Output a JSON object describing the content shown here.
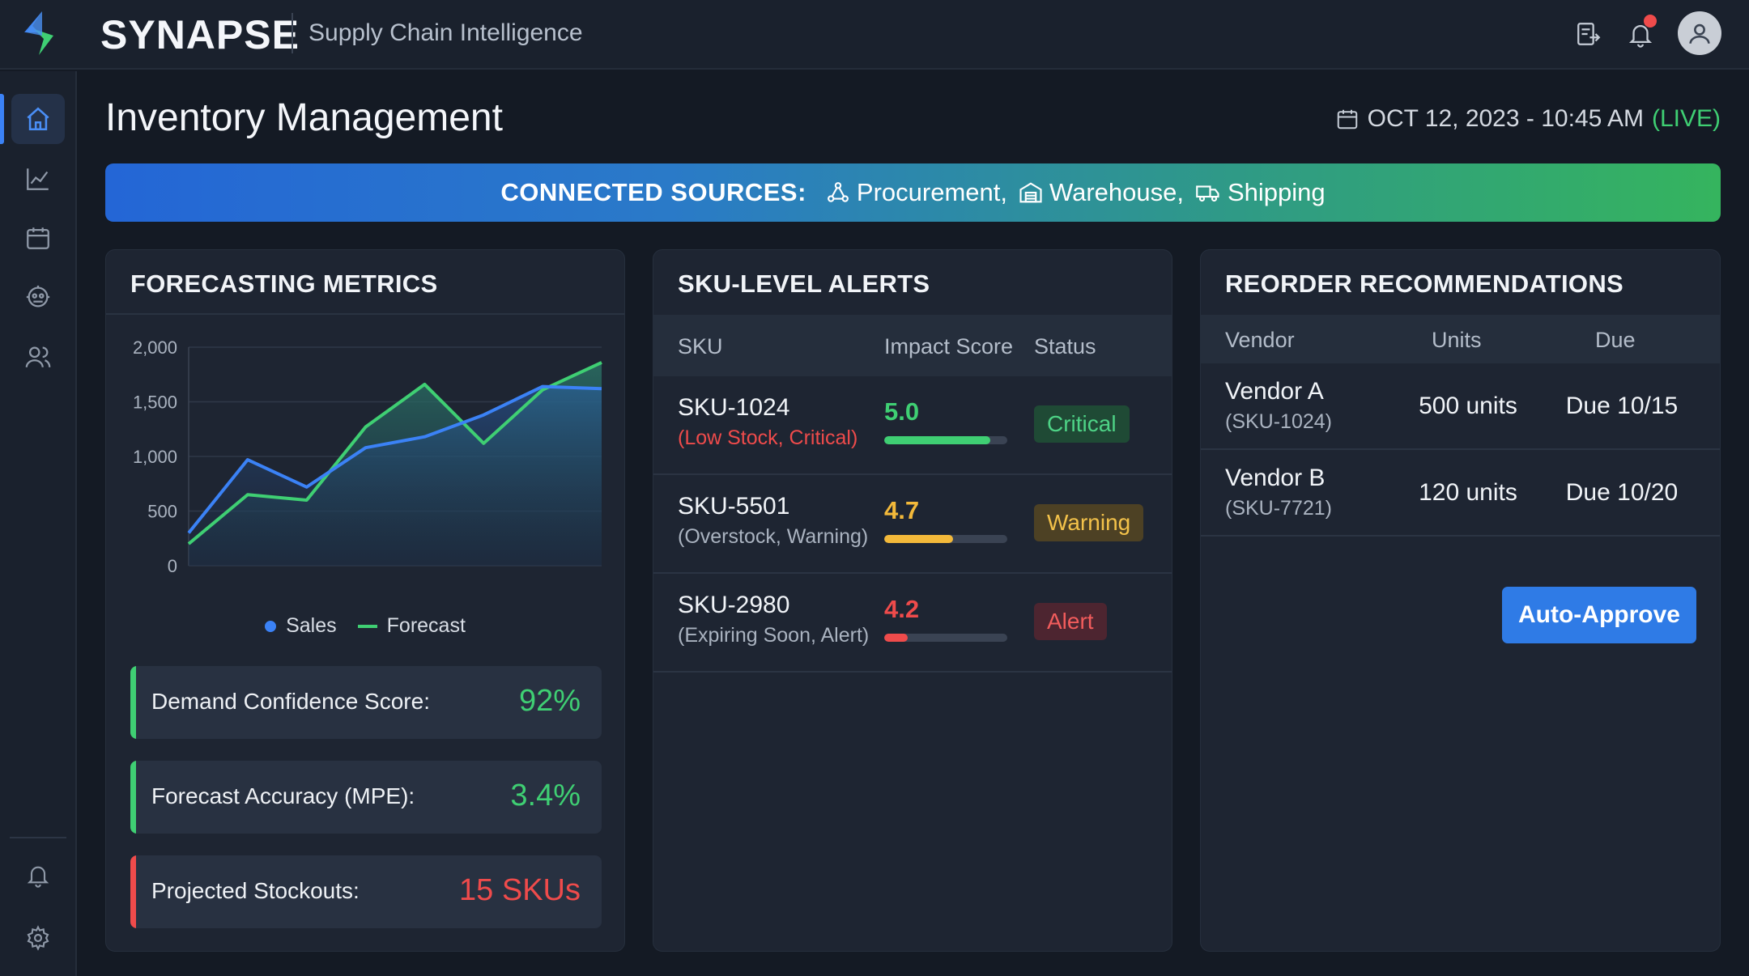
{
  "app": {
    "brand": "SYNAPSE",
    "subtitle": "Supply Chain Intelligence"
  },
  "topbar": {
    "icons": [
      "export-icon",
      "bell-icon",
      "user-avatar-icon"
    ],
    "notification_dot_color": "#ef4b4b"
  },
  "sidebar": {
    "items": [
      {
        "icon": "home-icon",
        "active": true
      },
      {
        "icon": "chart-line-icon",
        "active": false
      },
      {
        "icon": "calendar-icon",
        "active": false
      },
      {
        "icon": "ai-brain-icon",
        "active": false
      },
      {
        "icon": "users-icon",
        "active": false
      }
    ],
    "bottom_items": [
      {
        "icon": "bell-icon"
      },
      {
        "icon": "gear-icon"
      }
    ]
  },
  "header": {
    "title": "Inventory Management",
    "datetime": "OCT 12, 2023 - 10:45 AM",
    "live": "(LIVE)"
  },
  "sources": {
    "label": "CONNECTED SOURCES:",
    "items": [
      "Procurement,",
      "Warehouse,",
      "Shipping"
    ]
  },
  "forecasting": {
    "title": "FORECASTING METRICS",
    "legend": [
      "Sales",
      "Forecast"
    ],
    "metrics": [
      {
        "label": "Demand Confidence Score:",
        "value": "92%",
        "color": "#3fcf73"
      },
      {
        "label": "Forecast Accuracy (MPE):",
        "value": "3.4%",
        "color": "#3fcf73"
      },
      {
        "label": "Projected Stockouts:",
        "value": "15 SKUs",
        "color": "#ef4b4b"
      }
    ]
  },
  "chart_data": {
    "type": "area",
    "x": [
      0,
      1,
      2,
      3,
      4,
      5,
      6,
      7
    ],
    "yticks": [
      "0",
      "500",
      "1,000",
      "1,500",
      "2,000"
    ],
    "ylim": [
      0,
      2000
    ],
    "grid": true,
    "legend_position": "bottom",
    "series": [
      {
        "name": "Sales",
        "color": "#3b82f6",
        "values": [
          300,
          970,
          720,
          1080,
          1180,
          1380,
          1640,
          1620
        ]
      },
      {
        "name": "Forecast",
        "color": "#3fcf73",
        "values": [
          200,
          650,
          600,
          1270,
          1660,
          1120,
          1610,
          1860
        ]
      }
    ]
  },
  "sku_alerts": {
    "title": "SKU-LEVEL ALERTS",
    "columns": [
      "SKU",
      "Impact Score",
      "Status"
    ],
    "rows": [
      {
        "sku": "SKU-1024",
        "detail": "(Low Stock, Critical)",
        "score": "5.0",
        "score_fraction": 0.86,
        "status": "Critical",
        "color": "#3fcf73"
      },
      {
        "sku": "SKU-5501",
        "detail": "(Overstock, Warning)",
        "score": "4.7",
        "score_fraction": 0.56,
        "status": "Warning",
        "color": "#f3b93a"
      },
      {
        "sku": "SKU-2980",
        "detail": "(Expiring Soon, Alert)",
        "score": "4.2",
        "score_fraction": 0.19,
        "status": "Alert",
        "color": "#ef4b4b"
      }
    ]
  },
  "reorder": {
    "title": "REORDER RECOMMENDATIONS",
    "columns": [
      "Vendor",
      "Units",
      "Due"
    ],
    "rows": [
      {
        "vendor": "Vendor A",
        "sku": "(SKU-1024)",
        "units": "500 units",
        "due": "Due 10/15"
      },
      {
        "vendor": "Vendor B",
        "sku": "(SKU-7721)",
        "units": "120 units",
        "due": "Due 10/20"
      }
    ],
    "button": "Auto-Approve"
  }
}
